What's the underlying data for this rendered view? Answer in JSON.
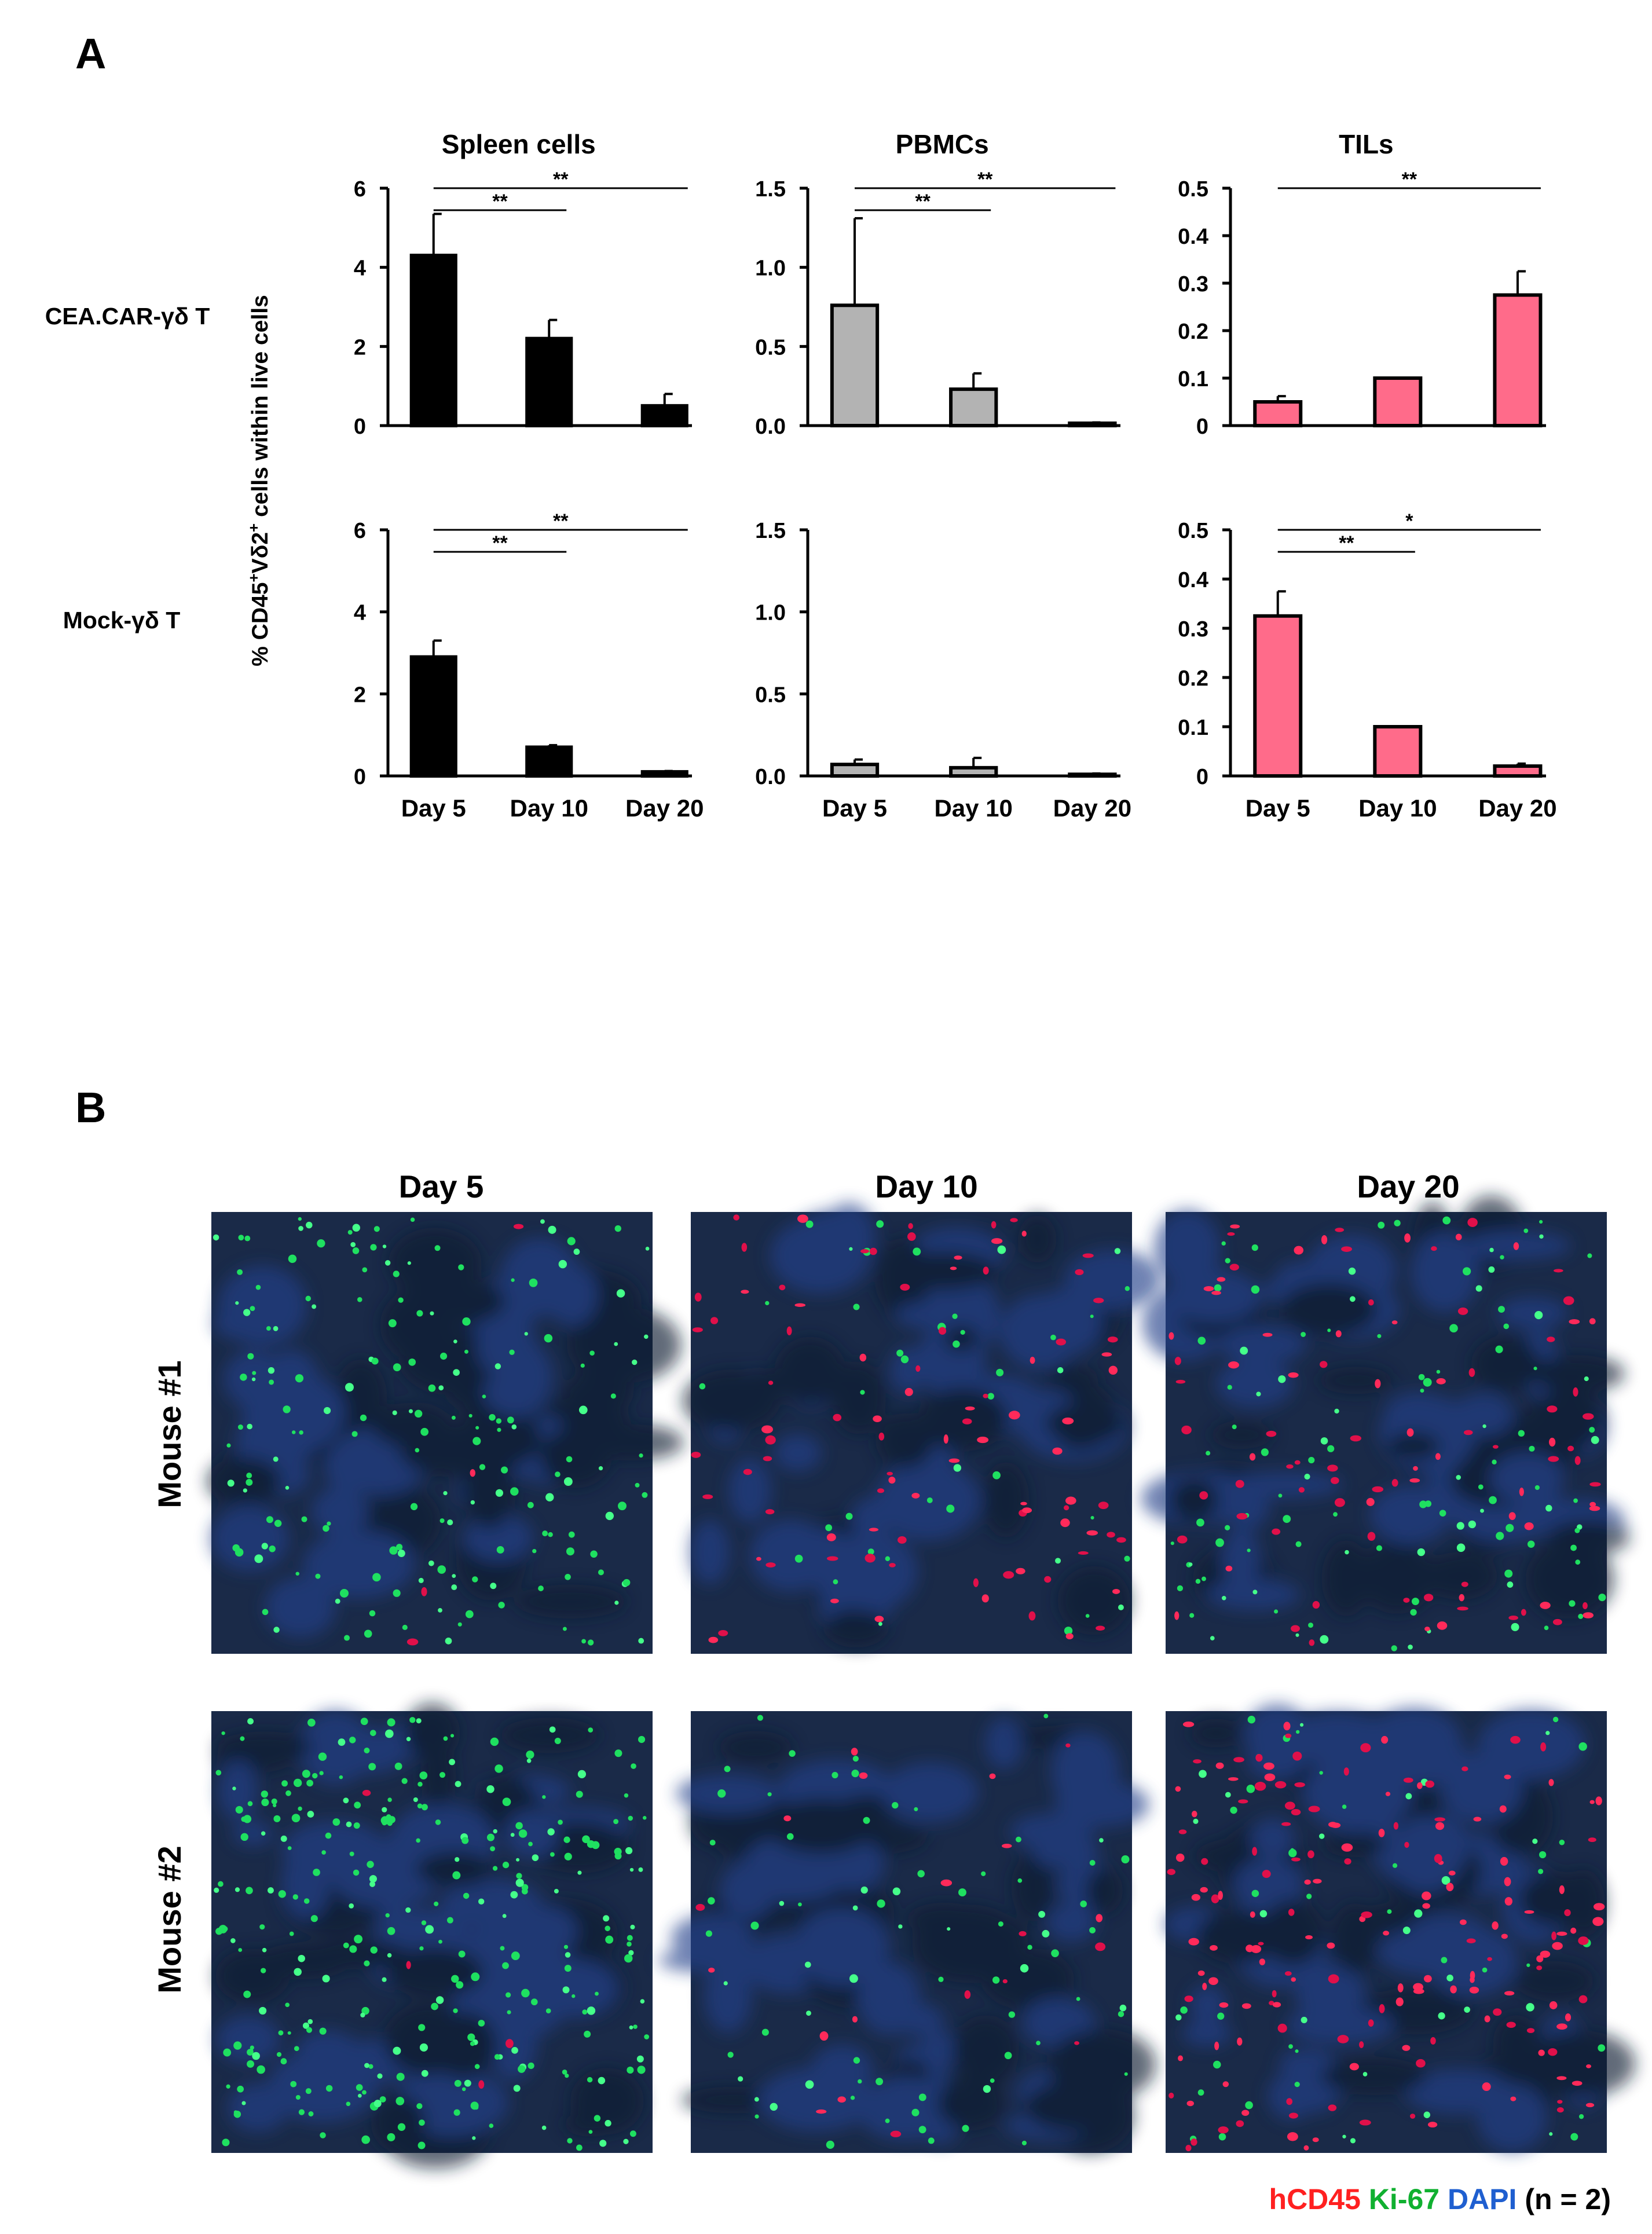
{
  "panel_a": {
    "letter": "A"
  },
  "panel_b": {
    "letter": "B"
  },
  "chart_data": [
    {
      "type": "bar",
      "row_label": "CEA.CAR-γδ T",
      "title": "Spleen cells",
      "categories": [
        "Day 5",
        "Day 10",
        "Day 20"
      ],
      "values": [
        4.3,
        2.2,
        0.5
      ],
      "errors": [
        1.05,
        0.47,
        0.3
      ],
      "ylim": [
        0,
        6
      ],
      "yticks": [
        0,
        2,
        4,
        6
      ],
      "yticklabels": [
        "0",
        "2",
        "4",
        "6"
      ],
      "color": "#000000",
      "significance": [
        {
          "from": 0,
          "to": 1,
          "label": "**"
        },
        {
          "from": 0,
          "to": 2,
          "label": "**"
        }
      ],
      "show_xlabels": false
    },
    {
      "type": "bar",
      "row_label": "CEA.CAR-γδ T",
      "title": "PBMCs",
      "categories": [
        "Day 5",
        "Day 10",
        "Day 20"
      ],
      "values": [
        0.76,
        0.23,
        0.015
      ],
      "errors": [
        0.55,
        0.1,
        0.005
      ],
      "ylim": [
        0,
        1.5
      ],
      "yticks": [
        0,
        0.5,
        1.0,
        1.5
      ],
      "yticklabels": [
        "0.0",
        "0.5",
        "1.0",
        "1.5"
      ],
      "color": "#b3b3b3",
      "significance": [
        {
          "from": 0,
          "to": 1,
          "label": "**"
        },
        {
          "from": 0,
          "to": 2,
          "label": "**"
        }
      ],
      "show_xlabels": false
    },
    {
      "type": "bar",
      "row_label": "CEA.CAR-γδ T",
      "title": "TILs",
      "categories": [
        "Day 5",
        "Day 10",
        "Day 20"
      ],
      "values": [
        0.05,
        0.1,
        0.275
      ],
      "errors": [
        0.012,
        0,
        0.05
      ],
      "ylim": [
        0,
        0.5
      ],
      "yticks": [
        0,
        0.1,
        0.2,
        0.3,
        0.4,
        0.5
      ],
      "yticklabels": [
        "0",
        "0.1",
        "0.2",
        "0.3",
        "0.4",
        "0.5"
      ],
      "color": "#ff6b8a",
      "significance": [
        {
          "from": 0,
          "to": 2,
          "label": "**"
        }
      ],
      "show_xlabels": false
    },
    {
      "type": "bar",
      "row_label": "Mock-γδ T",
      "title": "",
      "categories": [
        "Day 5",
        "Day 10",
        "Day 20"
      ],
      "values": [
        2.9,
        0.7,
        0.1
      ],
      "errors": [
        0.4,
        0.05,
        0.02
      ],
      "ylim": [
        0,
        6
      ],
      "yticks": [
        0,
        2,
        4,
        6
      ],
      "yticklabels": [
        "0",
        "2",
        "4",
        "6"
      ],
      "color": "#000000",
      "significance": [
        {
          "from": 0,
          "to": 1,
          "label": "**"
        },
        {
          "from": 0,
          "to": 2,
          "label": "**"
        }
      ],
      "show_xlabels": true
    },
    {
      "type": "bar",
      "row_label": "Mock-γδ T",
      "title": "",
      "categories": [
        "Day 5",
        "Day 10",
        "Day 20"
      ],
      "values": [
        0.07,
        0.05,
        0.01
      ],
      "errors": [
        0.03,
        0.06,
        0.005
      ],
      "ylim": [
        0,
        1.5
      ],
      "yticks": [
        0,
        0.5,
        1.0,
        1.5
      ],
      "yticklabels": [
        "0.0",
        "0.5",
        "1.0",
        "1.5"
      ],
      "color": "#b3b3b3",
      "significance": [],
      "show_xlabels": true
    },
    {
      "type": "bar",
      "row_label": "Mock-γδ T",
      "title": "",
      "categories": [
        "Day 5",
        "Day 10",
        "Day 20"
      ],
      "values": [
        0.325,
        0.1,
        0.02
      ],
      "errors": [
        0.05,
        0,
        0.005
      ],
      "ylim": [
        0,
        0.5
      ],
      "yticks": [
        0,
        0.1,
        0.2,
        0.3,
        0.4,
        0.5
      ],
      "yticklabels": [
        "0",
        "0.1",
        "0.2",
        "0.3",
        "0.4",
        "0.5"
      ],
      "color": "#ff6b8a",
      "significance": [
        {
          "from": 0,
          "to": 1,
          "label": "**"
        },
        {
          "from": 0,
          "to": 2,
          "label": "*"
        }
      ],
      "show_xlabels": true
    }
  ],
  "ylabel": {
    "prefix": "% CD45",
    "sup1": "+",
    "mid": "Vδ2",
    "sup2": "+",
    "suffix": " cells  within live cells"
  },
  "micrographs": {
    "columns": [
      "Day 5",
      "Day 10",
      "Day 20"
    ],
    "rows": [
      "Mouse #1",
      "Mouse #2"
    ],
    "images": [
      {
        "green": 180,
        "red": 4
      },
      {
        "green": 40,
        "red": 90
      },
      {
        "green": 110,
        "red": 90
      },
      {
        "green": 300,
        "red": 4
      },
      {
        "green": 75,
        "red": 20
      },
      {
        "green": 60,
        "red": 170
      }
    ]
  },
  "legend": {
    "items": [
      {
        "text": "hCD45",
        "color": "#ff2020"
      },
      {
        "text": "Ki-67",
        "color": "#10b030"
      },
      {
        "text": "DAPI",
        "color": "#1f5fd0"
      },
      {
        "text": "(n = 2)",
        "color": "#000000"
      }
    ]
  }
}
